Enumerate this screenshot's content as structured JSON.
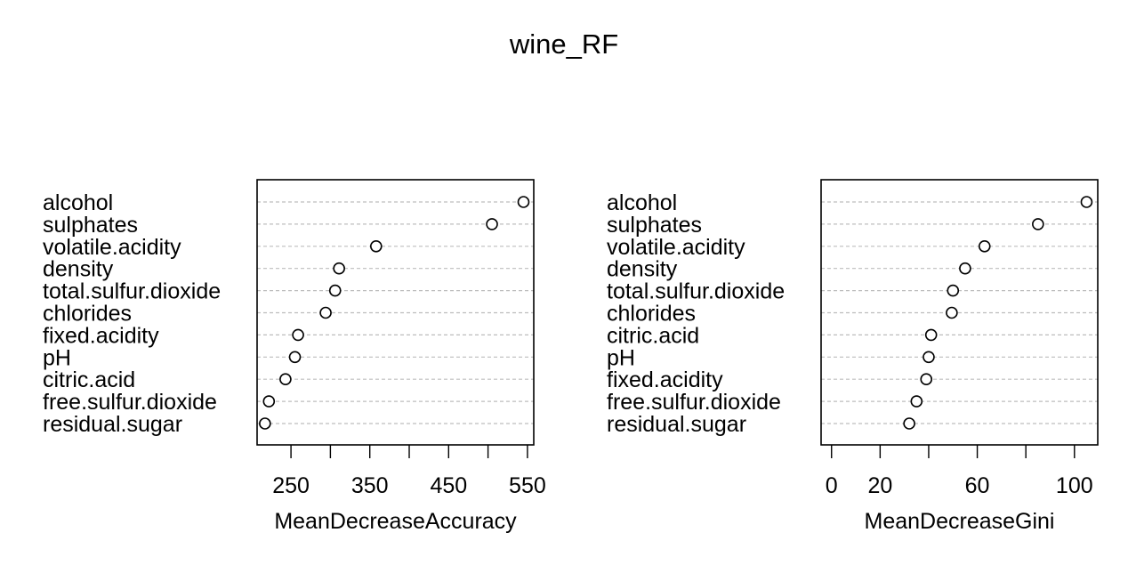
{
  "title": "wine_RF",
  "chart_data": [
    {
      "type": "scatter",
      "xlabel": "MeanDecreaseAccuracy",
      "xlim": [
        207,
        558
      ],
      "xticks": [
        250,
        300,
        350,
        400,
        450,
        500,
        550
      ],
      "xtick_labels": [
        "250",
        "",
        "350",
        "",
        "450",
        "",
        "550"
      ],
      "grid": true,
      "categories": [
        "alcohol",
        "sulphates",
        "volatile.acidity",
        "density",
        "total.sulfur.dioxide",
        "chlorides",
        "fixed.acidity",
        "pH",
        "citric.acid",
        "free.sulfur.dioxide",
        "residual.sugar"
      ],
      "values": [
        545,
        505,
        358,
        311,
        306,
        294,
        259,
        255,
        243,
        222,
        217
      ]
    },
    {
      "type": "scatter",
      "xlabel": "MeanDecreaseGini",
      "xlim": [
        -4.3,
        109.6
      ],
      "xticks": [
        0,
        20,
        40,
        60,
        80,
        100
      ],
      "xtick_labels": [
        "0",
        "20",
        "",
        "60",
        "",
        "100"
      ],
      "grid": true,
      "categories": [
        "alcohol",
        "sulphates",
        "volatile.acidity",
        "density",
        "total.sulfur.dioxide",
        "chlorides",
        "citric.acid",
        "pH",
        "fixed.acidity",
        "free.sulfur.dioxide",
        "residual.sugar"
      ],
      "values": [
        105,
        85,
        63,
        55,
        50,
        49.5,
        41,
        40,
        39,
        35,
        32
      ]
    }
  ]
}
